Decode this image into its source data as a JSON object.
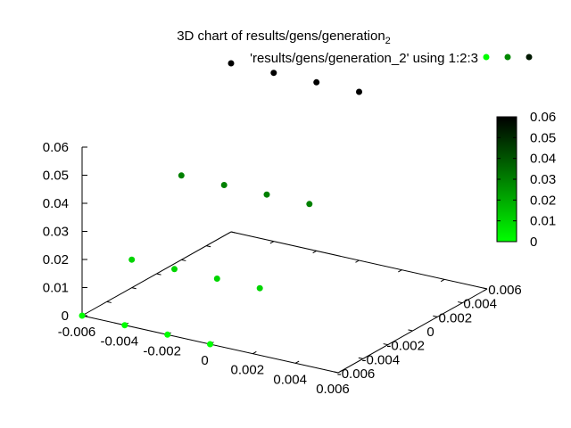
{
  "chart_data": {
    "type": "scatter",
    "title": "3D chart of results/gens/generation",
    "title_subscript": "2",
    "legend": {
      "label": "'results/gens/generation_2' using 1:2:3",
      "placement": "top-right",
      "marker_colors": [
        "#00ff00",
        "#008800",
        "#001800"
      ]
    },
    "xlim": [
      -0.006,
      0.006
    ],
    "ylim": [
      -0.006,
      0.006
    ],
    "zlim": [
      0,
      0.06
    ],
    "x_ticks": [
      "-0.006",
      "-0.004",
      "-0.002",
      "0",
      "0.002",
      "0.004",
      "0.006"
    ],
    "y_ticks": [
      "-0.006",
      "-0.004",
      "-0.002",
      "0",
      "0.002",
      "0.004",
      "0.006"
    ],
    "z_ticks": [
      "0",
      "0.01",
      "0.02",
      "0.03",
      "0.04",
      "0.05",
      "0.06"
    ],
    "colorbar": {
      "range": [
        0,
        0.06
      ],
      "ticks": [
        "0",
        "0.01",
        "0.02",
        "0.03",
        "0.04",
        "0.05",
        "0.06"
      ],
      "colors": [
        "#00ff00",
        "#000000"
      ]
    },
    "grid": false,
    "points": [
      {
        "x": -0.006,
        "y": -0.006,
        "z": 0.0
      },
      {
        "x": -0.004,
        "y": -0.006,
        "z": 0.0
      },
      {
        "x": -0.002,
        "y": -0.006,
        "z": 0.0
      },
      {
        "x": 0.0,
        "y": -0.006,
        "z": 0.0
      },
      {
        "x": -0.006,
        "y": -0.002,
        "z": 0.01
      },
      {
        "x": -0.004,
        "y": -0.002,
        "z": 0.01
      },
      {
        "x": -0.002,
        "y": -0.002,
        "z": 0.01
      },
      {
        "x": 0.0,
        "y": -0.002,
        "z": 0.01
      },
      {
        "x": -0.006,
        "y": 0.002,
        "z": 0.03
      },
      {
        "x": -0.004,
        "y": 0.002,
        "z": 0.03
      },
      {
        "x": -0.002,
        "y": 0.002,
        "z": 0.03
      },
      {
        "x": 0.0,
        "y": 0.002,
        "z": 0.03
      },
      {
        "x": -0.006,
        "y": 0.006,
        "z": 0.06
      },
      {
        "x": -0.004,
        "y": 0.006,
        "z": 0.06
      },
      {
        "x": -0.002,
        "y": 0.006,
        "z": 0.06
      },
      {
        "x": 0.0,
        "y": 0.006,
        "z": 0.06
      }
    ]
  }
}
